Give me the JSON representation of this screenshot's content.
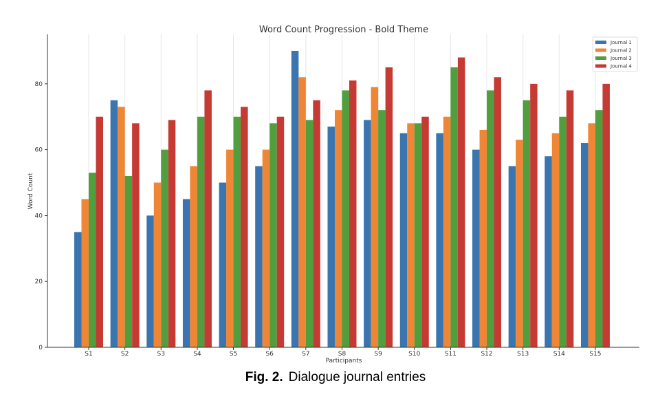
{
  "chart_data": {
    "type": "bar",
    "title": "Word Count Progression - Bold Theme",
    "xlabel": "Participants",
    "ylabel": "Word Count",
    "ylim": [
      0,
      95
    ],
    "yticks": [
      0,
      20,
      40,
      60,
      80
    ],
    "grid": "vertical",
    "legend_position": "top-right",
    "categories": [
      "S1",
      "S2",
      "S3",
      "S4",
      "S5",
      "S6",
      "S7",
      "S8",
      "S9",
      "S10",
      "S11",
      "S12",
      "S13",
      "S14",
      "S15"
    ],
    "series": [
      {
        "name": "Journal 1",
        "color": "#3a75b0",
        "values": [
          35,
          75,
          40,
          45,
          50,
          55,
          90,
          67,
          69,
          65,
          65,
          60,
          55,
          58,
          62
        ]
      },
      {
        "name": "Journal 2",
        "color": "#ef8636",
        "values": [
          45,
          73,
          50,
          55,
          60,
          60,
          82,
          72,
          79,
          68,
          70,
          66,
          63,
          65,
          68
        ]
      },
      {
        "name": "Journal 3",
        "color": "#519e3e",
        "values": [
          53,
          52,
          60,
          70,
          70,
          68,
          69,
          78,
          72,
          68,
          85,
          78,
          75,
          70,
          72
        ]
      },
      {
        "name": "Journal 4",
        "color": "#c53a32",
        "values": [
          70,
          68,
          69,
          78,
          73,
          70,
          75,
          81,
          85,
          70,
          88,
          82,
          80,
          78,
          80
        ]
      }
    ]
  },
  "caption": {
    "label": "Fig. 2.",
    "text": "Dialogue journal entries"
  }
}
